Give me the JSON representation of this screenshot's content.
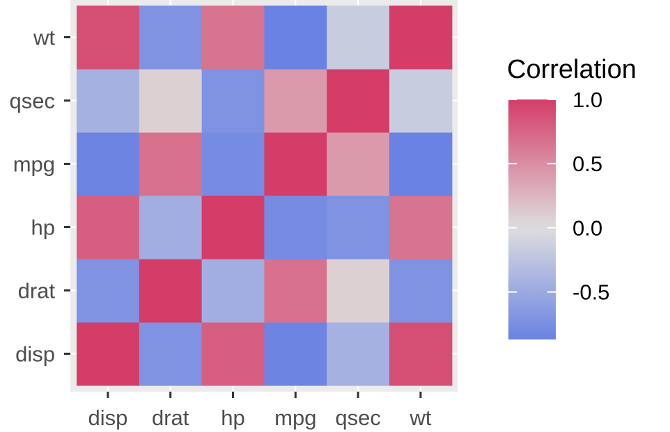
{
  "chart_data": {
    "type": "heatmap",
    "x_categories": [
      "disp",
      "drat",
      "hp",
      "mpg",
      "qsec",
      "wt"
    ],
    "y_categories": [
      "disp",
      "drat",
      "hp",
      "mpg",
      "qsec",
      "wt"
    ],
    "values": [
      [
        1.0,
        -0.71,
        0.79,
        -0.85,
        -0.43,
        0.89
      ],
      [
        -0.71,
        1.0,
        -0.45,
        0.68,
        0.09,
        -0.71
      ],
      [
        0.79,
        -0.45,
        1.0,
        -0.78,
        -0.71,
        0.66
      ],
      [
        -0.85,
        0.68,
        -0.78,
        1.0,
        0.42,
        -0.87
      ],
      [
        -0.43,
        0.09,
        -0.71,
        0.42,
        1.0,
        -0.17
      ],
      [
        0.89,
        -0.71,
        0.66,
        -0.87,
        -0.17,
        1.0
      ]
    ],
    "xlabel": "",
    "ylabel": "",
    "grid": true,
    "legend": {
      "title": "Correlation",
      "position": "right",
      "range": [
        -0.87,
        1.0
      ],
      "ticks": [
        {
          "value": 1.0,
          "label": "1.0"
        },
        {
          "value": 0.5,
          "label": "0.5"
        },
        {
          "value": 0.0,
          "label": "0.0"
        },
        {
          "value": -0.5,
          "label": "-0.5"
        }
      ]
    },
    "colors": {
      "low": "#6a82e3",
      "mid": "#dedede",
      "high": "#d43d68",
      "panel_background": "#ebebeb",
      "grid_line": "#ffffff",
      "tick_mark": "#333333"
    }
  }
}
